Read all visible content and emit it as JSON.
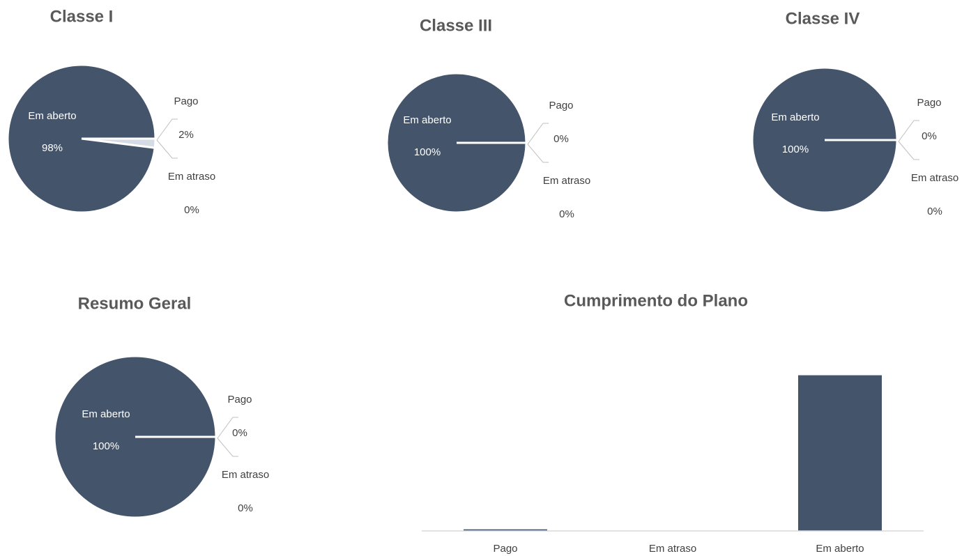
{
  "chart_data": [
    {
      "type": "pie",
      "title": "Classe I",
      "categories": [
        "Pago",
        "Em atraso",
        "Em aberto"
      ],
      "values": [
        2,
        0,
        98
      ],
      "value_labels": [
        "2%",
        "0%",
        "98%"
      ],
      "colors": [
        "#d6dce5",
        "#ed7d31",
        "#44546a"
      ]
    },
    {
      "type": "pie",
      "title": "Classe III",
      "categories": [
        "Pago",
        "Em atraso",
        "Em aberto"
      ],
      "values": [
        0,
        0,
        100
      ],
      "value_labels": [
        "0%",
        "0%",
        "100%"
      ],
      "colors": [
        "#d6dce5",
        "#ed7d31",
        "#44546a"
      ]
    },
    {
      "type": "pie",
      "title": "Classe IV",
      "categories": [
        "Pago",
        "Em atraso",
        "Em aberto"
      ],
      "values": [
        0,
        0,
        100
      ],
      "value_labels": [
        "0%",
        "0%",
        "100%"
      ],
      "colors": [
        "#d6dce5",
        "#ed7d31",
        "#44546a"
      ]
    },
    {
      "type": "pie",
      "title": "Resumo Geral",
      "categories": [
        "Pago",
        "Em atraso",
        "Em aberto"
      ],
      "values": [
        0,
        0,
        100
      ],
      "value_labels": [
        "0%",
        "0%",
        "100%"
      ],
      "colors": [
        "#d6dce5",
        "#ed7d31",
        "#44546a"
      ]
    },
    {
      "type": "bar",
      "title": "Cumprimento do Plano",
      "categories": [
        "Pago",
        "Em atraso",
        "Em aberto"
      ],
      "values": [
        1,
        0,
        98
      ],
      "color": "#44546a",
      "ylim": [
        0,
        100
      ]
    }
  ]
}
